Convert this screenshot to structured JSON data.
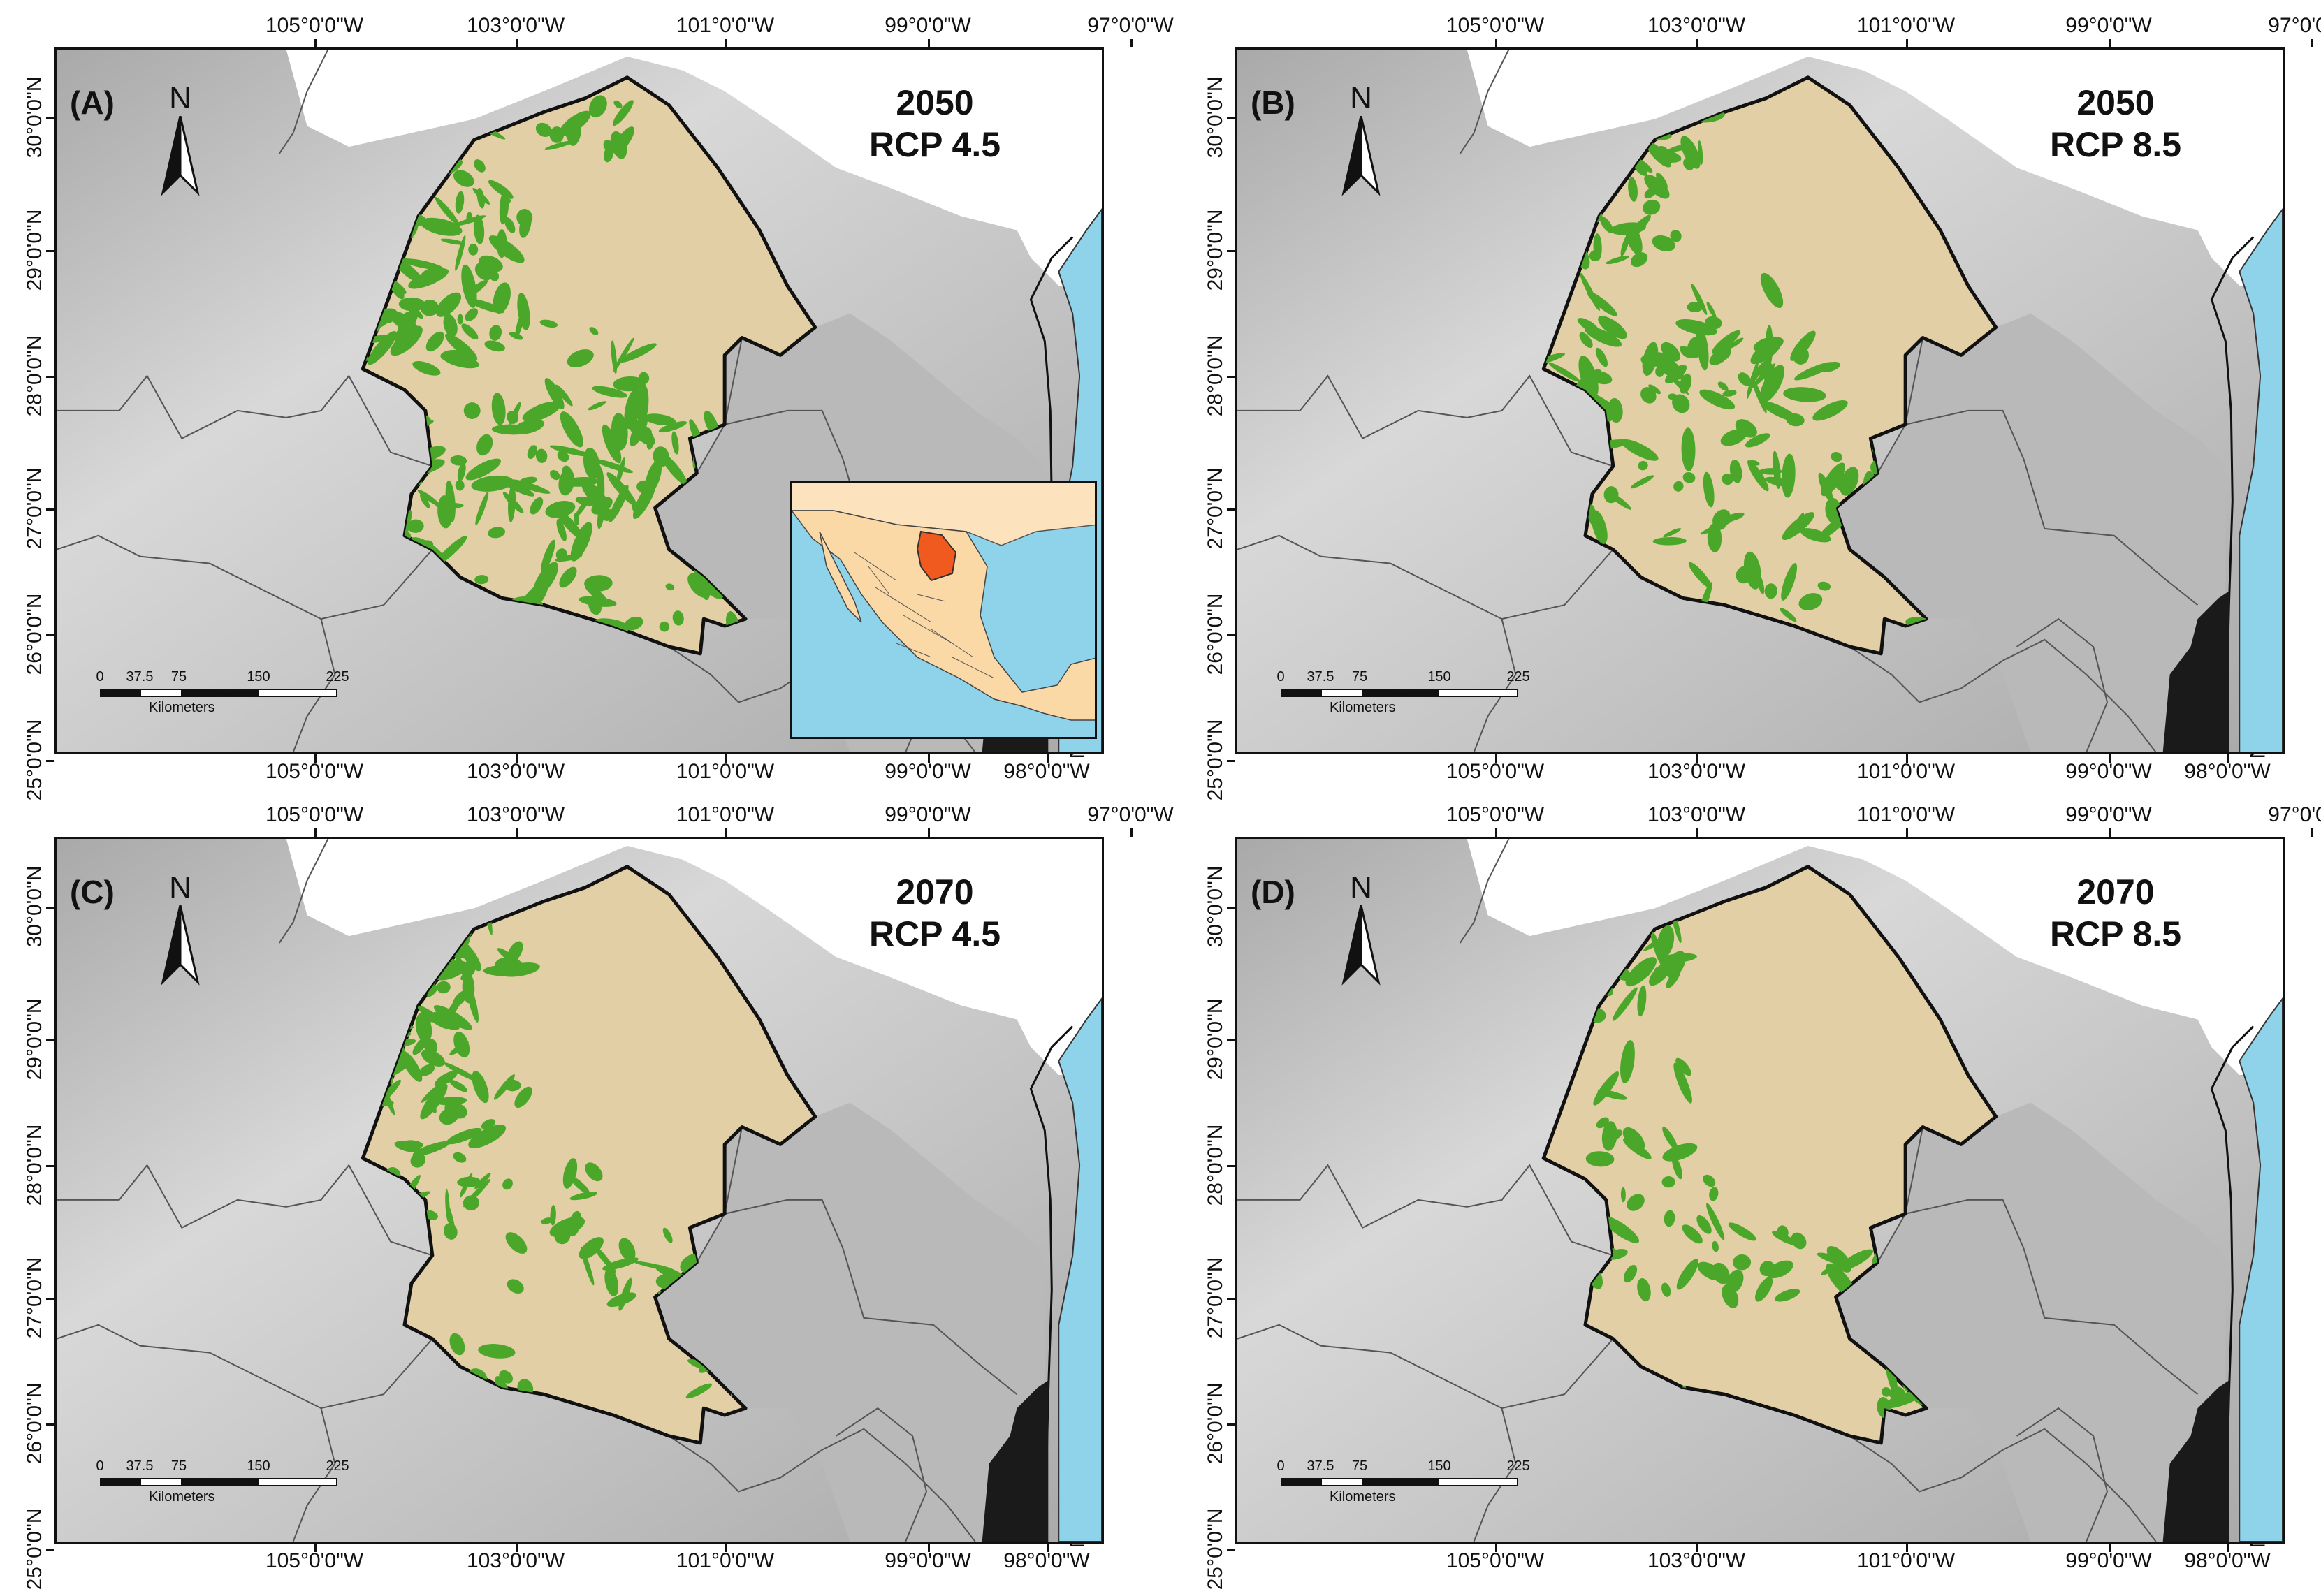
{
  "colors": {
    "study_area": "#e2cfa5",
    "suitable_habitat": "#4aa72a",
    "ocean": "#8fd3ea",
    "relief_light": "#d8d8d8",
    "relief_dark": "#a9a9a9",
    "inset_country": "#fbd9a6",
    "inset_highlight": "#f05a1e"
  },
  "scale_bar": {
    "ticks": [
      "0",
      "37.5",
      "75",
      "150",
      "225"
    ],
    "unit": "Kilometers"
  },
  "north_label": "N",
  "axis_labels": {
    "lon_top": [
      "105°0'0\"W",
      "103°0'0\"W",
      "101°0'0\"W",
      "99°0'0\"W",
      "97°0'0\"W"
    ],
    "lon_bottom": [
      "105°0'0\"W",
      "103°0'0\"W",
      "101°0'0\"W",
      "99°0'0\"W",
      "98°0'0\"W"
    ],
    "lat_left": [
      "30°0'0\"N",
      "29°0'0\"N",
      "28°0'0\"N",
      "27°0'0\"N",
      "26°0'0\"N",
      "25°0'0\"N"
    ],
    "lat_right": [
      "29°0'0\"N",
      "28°0'0\"N",
      "27°0'0\"N",
      "26°0'0\"N",
      "25°0'0\"N"
    ]
  },
  "panels": [
    {
      "id": "(A)",
      "year": "2050",
      "scenario": "RCP 4.5",
      "habitat": "large"
    },
    {
      "id": "(B)",
      "year": "2050",
      "scenario": "RCP 8.5",
      "habitat": "medium"
    },
    {
      "id": "(C)",
      "year": "2070",
      "scenario": "RCP 4.5",
      "habitat": "north"
    },
    {
      "id": "(D)",
      "year": "2070",
      "scenario": "RCP 8.5",
      "habitat": "sparse"
    }
  ]
}
